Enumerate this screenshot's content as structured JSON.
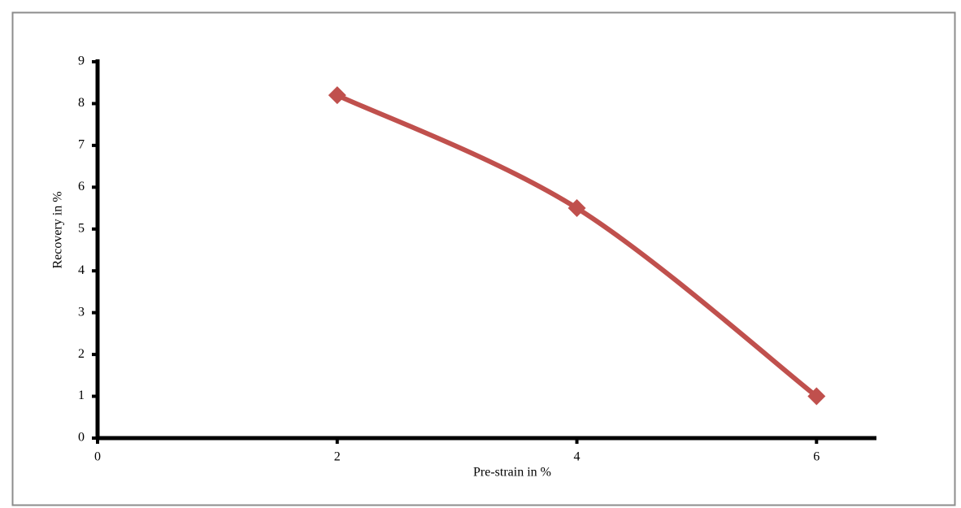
{
  "chart_data": {
    "type": "line",
    "x_label": "Pre-strain in %",
    "y_label": "Recovery in %",
    "x": [
      2,
      4,
      6
    ],
    "series": [
      {
        "name": "Recovery",
        "color": "#c0504d",
        "values": [
          8.2,
          5.5,
          1
        ]
      }
    ],
    "xlim": [
      0,
      6.5
    ],
    "xticks": [
      0,
      2,
      4,
      6
    ],
    "ylim": [
      0,
      9
    ],
    "yticks": [
      0,
      1,
      2,
      3,
      4,
      5,
      6,
      7,
      8,
      9
    ],
    "smooth": true,
    "marker": "diamond",
    "legend": false,
    "grid": false
  }
}
